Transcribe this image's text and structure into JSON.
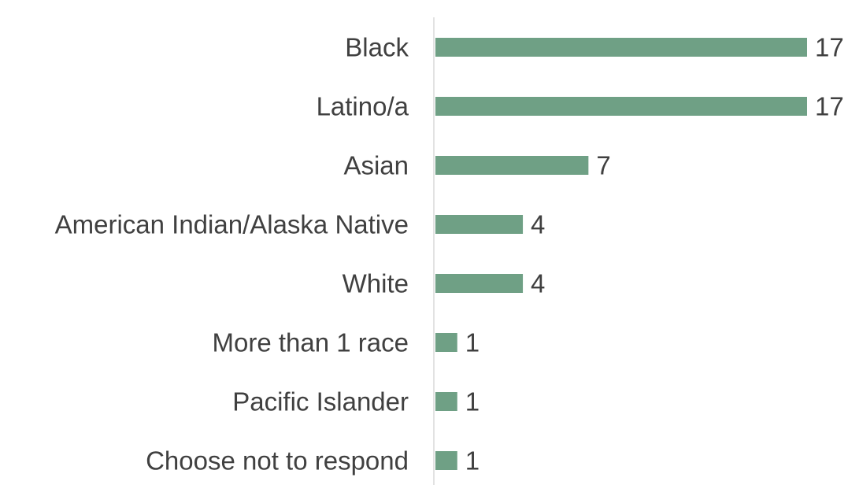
{
  "chart_data": {
    "type": "bar",
    "orientation": "horizontal",
    "categories": [
      "Black",
      "Latino/a",
      "Asian",
      "American Indian/Alaska Native",
      "White",
      "More than 1 race",
      "Pacific Islander",
      "Choose not to respond"
    ],
    "values": [
      17,
      17,
      7,
      4,
      4,
      1,
      1,
      1
    ],
    "xlim": [
      0,
      17
    ],
    "grid": false,
    "data_labels": true,
    "bar_color": "#6fa085"
  }
}
